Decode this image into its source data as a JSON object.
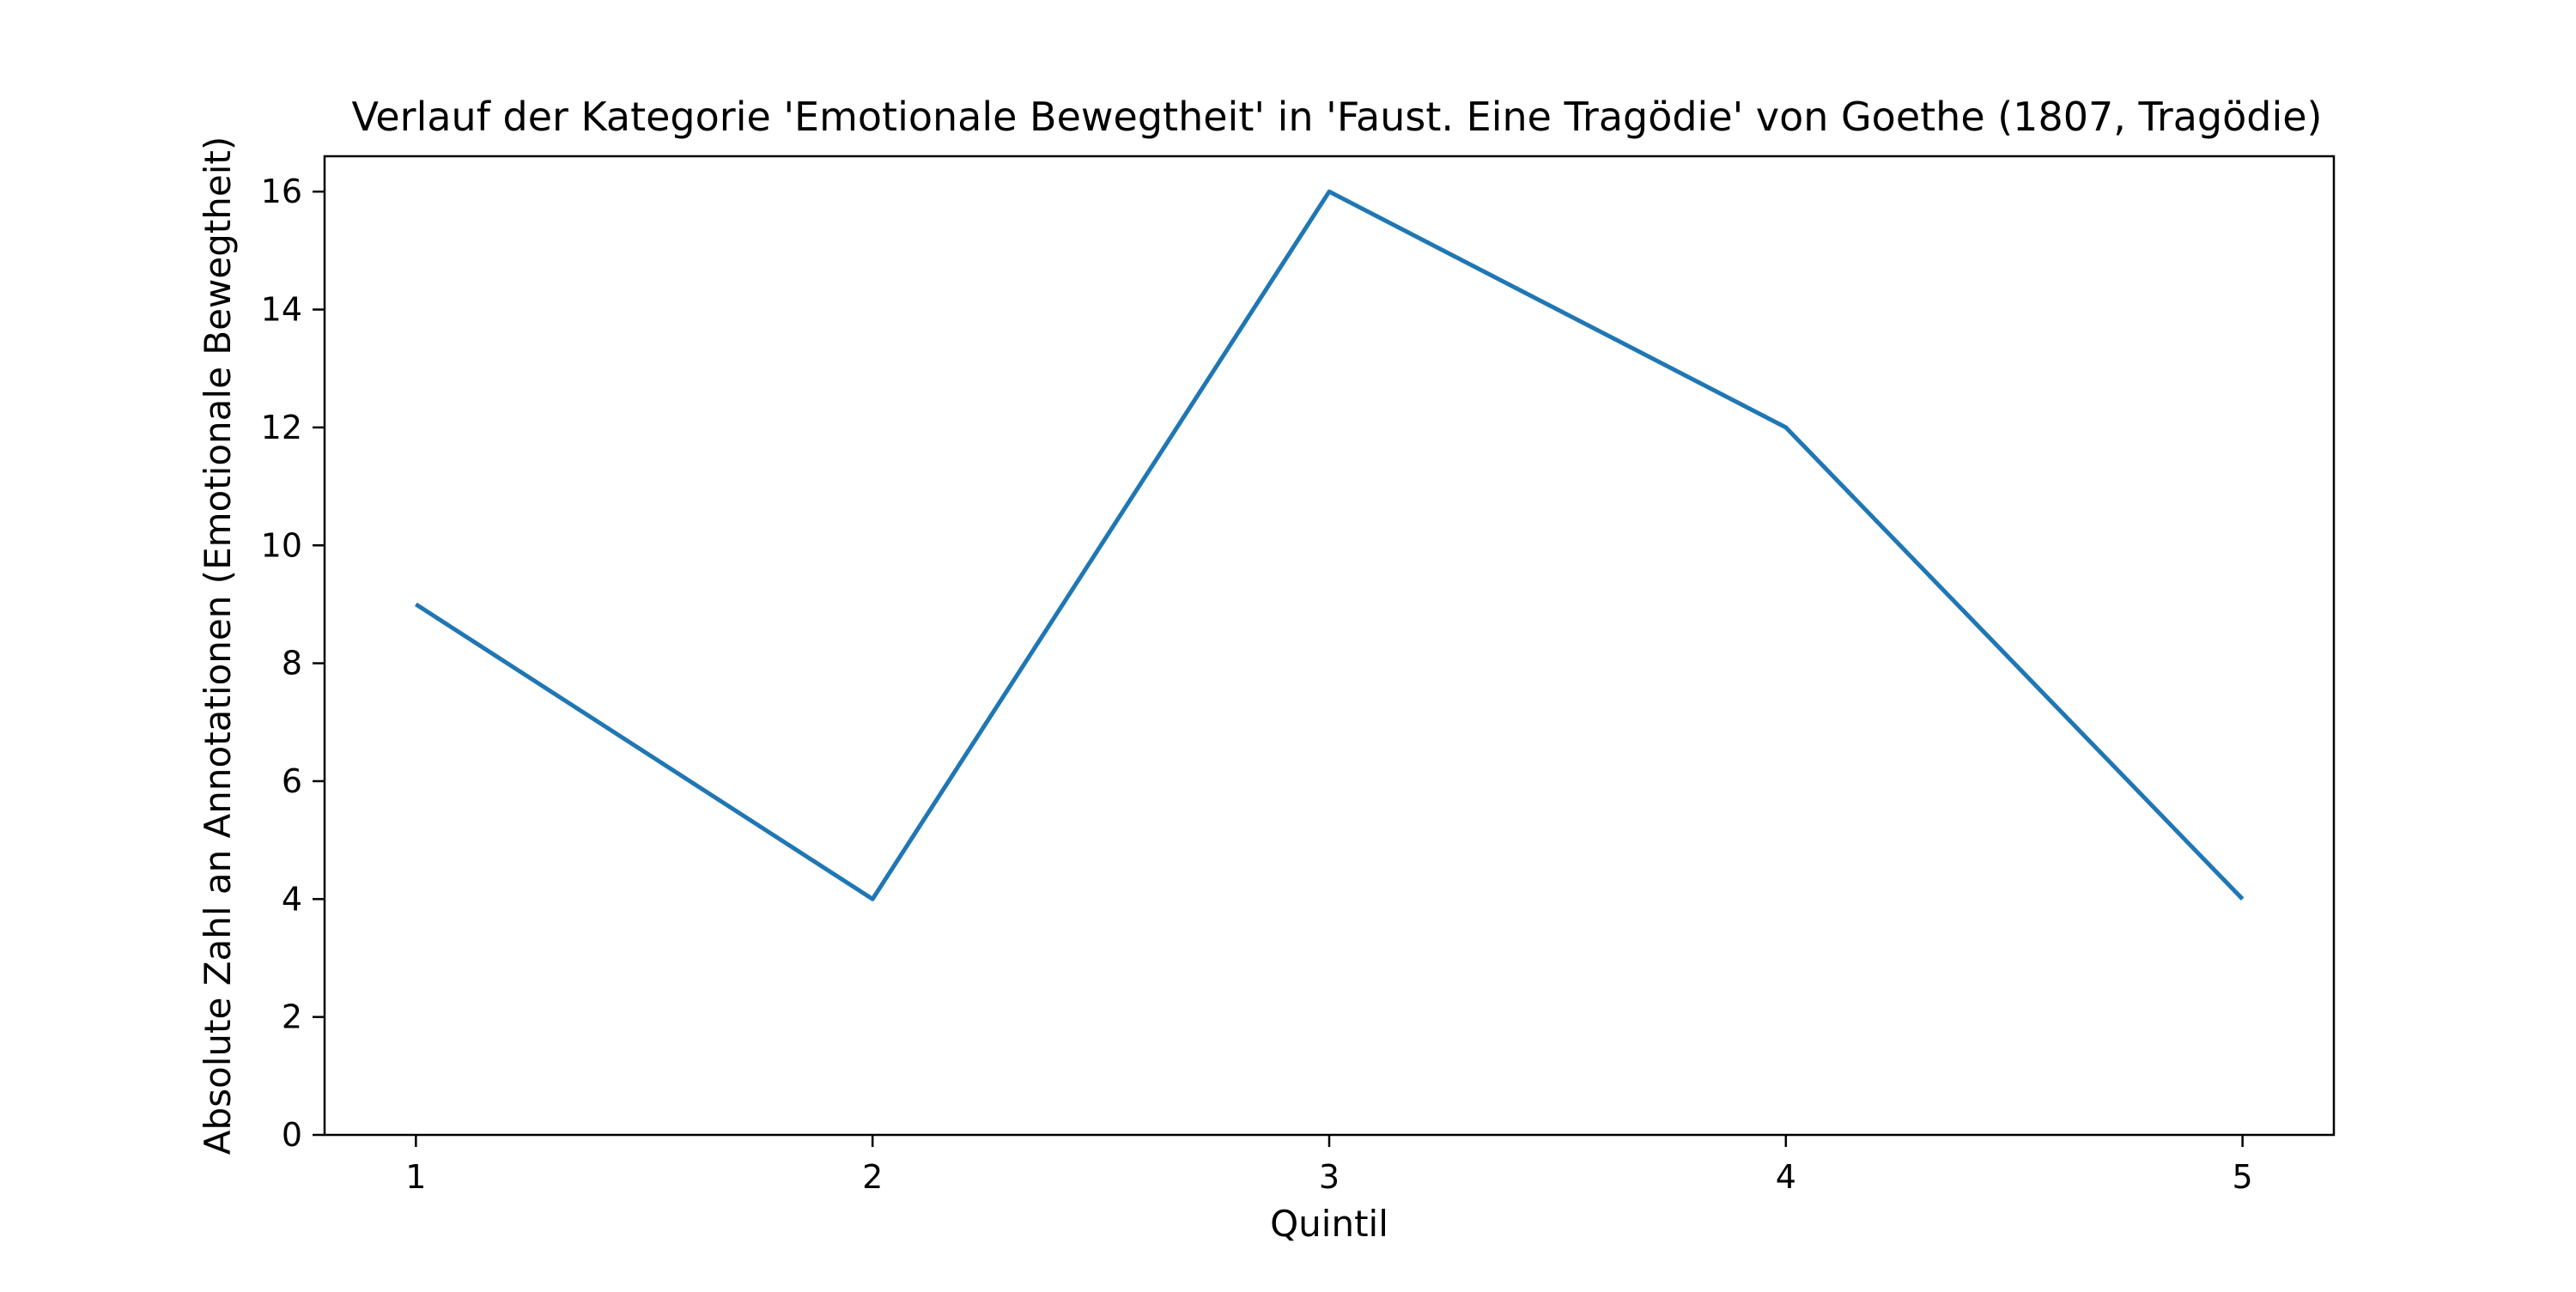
{
  "chart_data": {
    "type": "line",
    "title": "Verlauf der Kategorie 'Emotionale Bewegtheit' in 'Faust. Eine Tragödie' von Goethe (1807, Tragödie)",
    "xlabel": "Quintil",
    "ylabel": "Absolute Zahl an Annotationen (Emotionale Bewegtheit)",
    "x": [
      1,
      2,
      3,
      4,
      5
    ],
    "series": [
      {
        "values": [
          9,
          4,
          16,
          12,
          4
        ],
        "color": "#1f77b4"
      }
    ],
    "xlim": [
      0.8,
      5.2
    ],
    "ylim": [
      0,
      16.6
    ],
    "xticks": [
      "1",
      "2",
      "3",
      "4",
      "5"
    ],
    "yticks": [
      "0",
      "2",
      "4",
      "6",
      "8",
      "10",
      "12",
      "14",
      "16"
    ],
    "grid": false,
    "legend": "none"
  }
}
